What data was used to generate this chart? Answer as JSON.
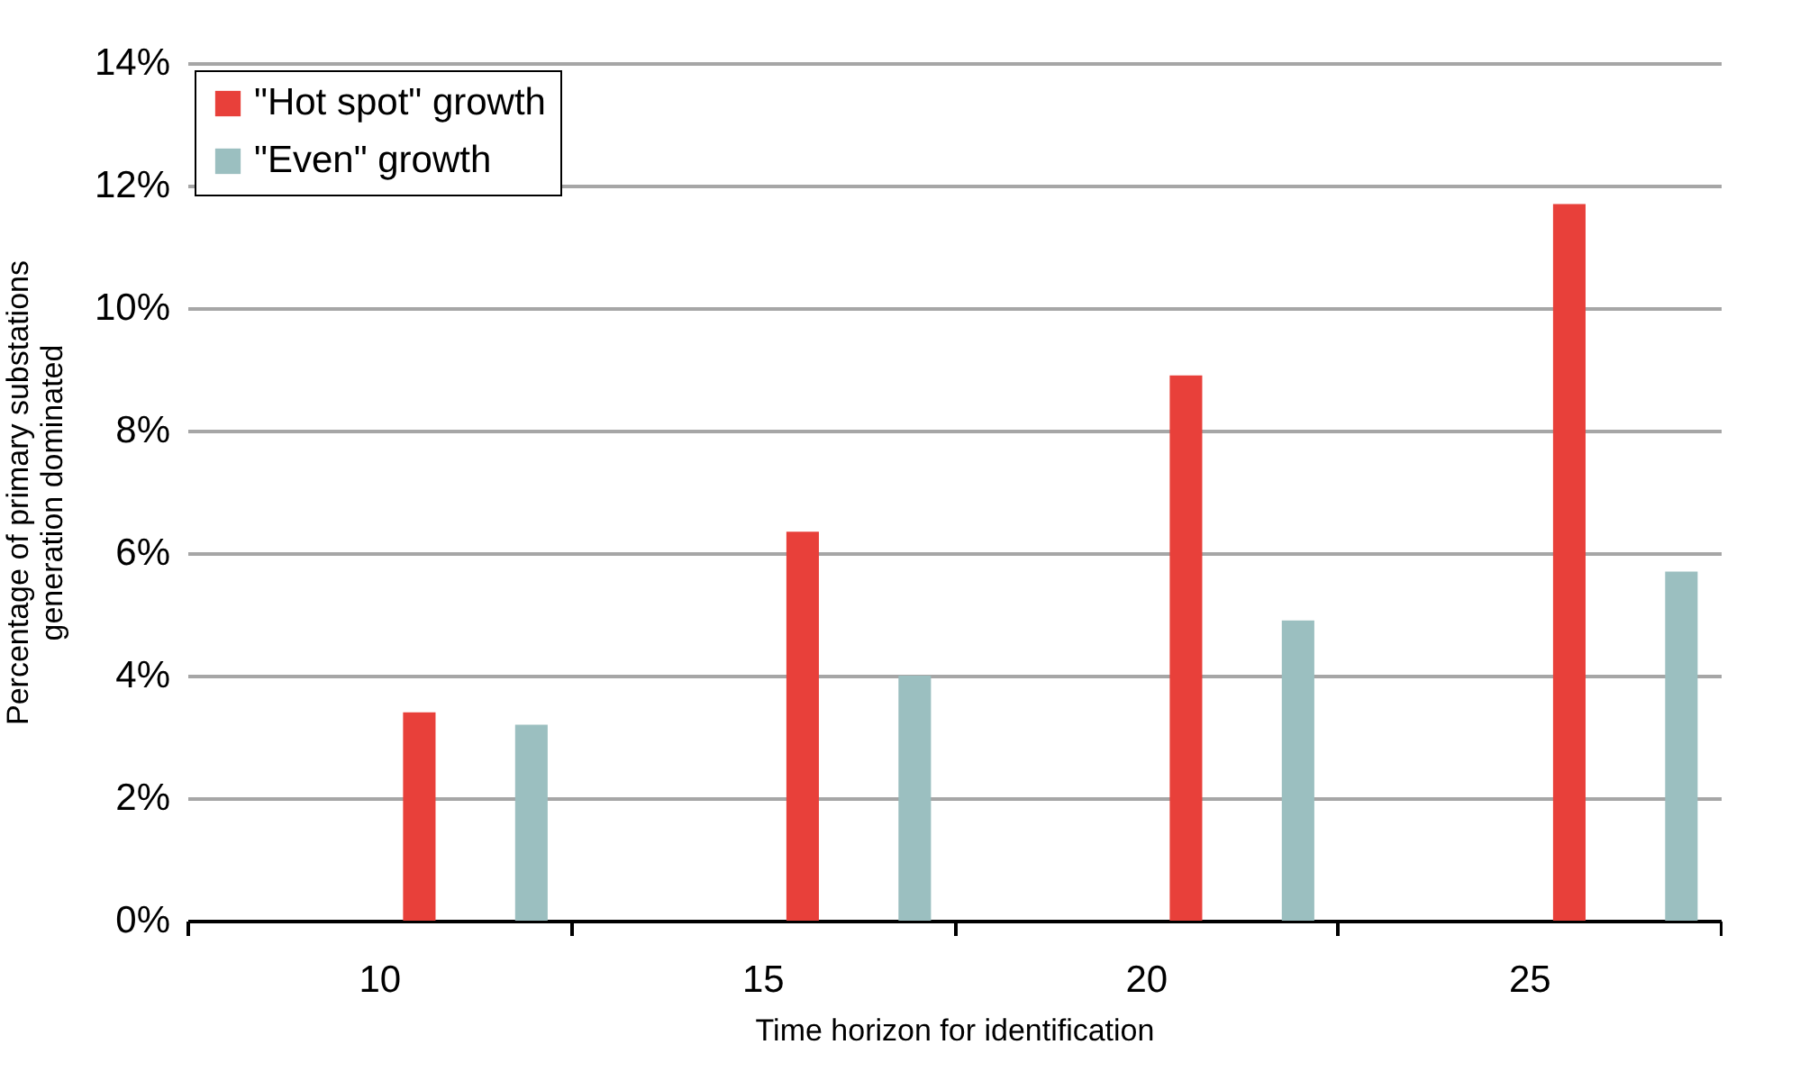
{
  "chart_data": {
    "type": "bar",
    "xlabel": "Time horizon for identification",
    "ylabel": "Percentage of primary substations\ngeneration dominated",
    "categories": [
      "10",
      "15",
      "20",
      "25"
    ],
    "series": [
      {
        "name": "\"Hot spot\" growth",
        "color": "#e8403a",
        "values": [
          3.4,
          6.35,
          8.9,
          11.7
        ]
      },
      {
        "name": "\"Even\" growth",
        "color": "#9bbfc0",
        "values": [
          3.2,
          4.0,
          4.9,
          5.7
        ]
      }
    ],
    "ylim": [
      0,
      14
    ],
    "yticks": [
      {
        "value": 0,
        "label": "0%"
      },
      {
        "value": 2,
        "label": "2%"
      },
      {
        "value": 4,
        "label": "4%"
      },
      {
        "value": 6,
        "label": "6%"
      },
      {
        "value": 8,
        "label": "8%"
      },
      {
        "value": 10,
        "label": "10%"
      },
      {
        "value": 12,
        "label": "12%"
      },
      {
        "value": 14,
        "label": "14%"
      }
    ],
    "grid": "y",
    "legend": "top left"
  }
}
